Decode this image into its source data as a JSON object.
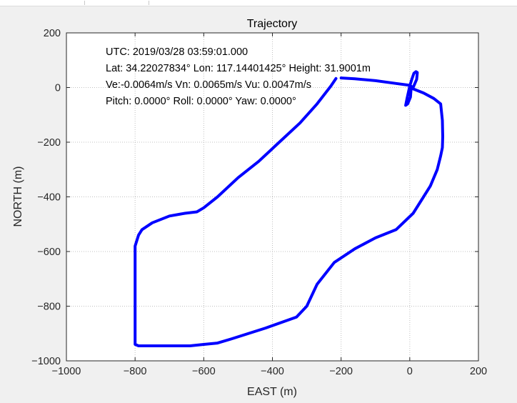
{
  "chart_data": {
    "type": "line",
    "title": "Trajectory",
    "xlabel": "EAST (m)",
    "ylabel": "NORTH (m)",
    "xlim": [
      -1000,
      200
    ],
    "ylim": [
      -1000,
      200
    ],
    "xticks": [
      -1000,
      -800,
      -600,
      -400,
      -200,
      0,
      200
    ],
    "yticks": [
      -1000,
      -800,
      -600,
      -400,
      -200,
      0,
      200
    ],
    "xtick_labels": [
      "−1000",
      "−800",
      "−600",
      "−400",
      "−200",
      "0",
      "200"
    ],
    "ytick_labels": [
      "−1000",
      "−800",
      "−600",
      "−400",
      "−200",
      "0",
      "200"
    ],
    "grid": true,
    "line_color": "#0000ff",
    "annotations": [
      "UTC: 2019/03/28  03:59:01.000",
      "Lat: 34.22027834°  Lon: 117.14401425°  Height: 31.9001m",
      "Ve:-0.0064m/s   Vn: 0.0065m/s   Vu: 0.0047m/s",
      "Pitch: 0.0000°  Roll: 0.0000°  Yaw: 0.0000°"
    ],
    "series": [
      {
        "x": [
          -200,
          -160,
          -100,
          -40,
          0,
          10,
          20,
          22,
          18,
          12,
          6,
          0,
          -8,
          -12,
          -6,
          2,
          4,
          10,
          40,
          70,
          90,
          95,
          96,
          95,
          90,
          80,
          60,
          40,
          10,
          -40,
          -100,
          -160,
          -220,
          -270,
          -300,
          -330,
          -420,
          -520,
          -560,
          -600,
          -640,
          -680,
          -740,
          -790,
          -800,
          -800,
          -800,
          -800,
          -800,
          -800,
          -790,
          -780,
          -750,
          -700,
          -655,
          -620,
          -600,
          -560,
          -500,
          -440,
          -380,
          -320,
          -270,
          -230,
          -215
        ],
        "y": [
          35,
          32,
          25,
          15,
          8,
          0,
          30,
          55,
          58,
          52,
          30,
          5,
          -40,
          -65,
          -60,
          -35,
          0,
          -5,
          -20,
          -40,
          -60,
          -120,
          -180,
          -220,
          -250,
          -300,
          -360,
          -400,
          -460,
          -520,
          -550,
          -590,
          -640,
          -720,
          -800,
          -840,
          -880,
          -920,
          -935,
          -940,
          -945,
          -945,
          -945,
          -945,
          -940,
          -900,
          -800,
          -700,
          -600,
          -580,
          -540,
          -520,
          -495,
          -470,
          -460,
          -455,
          -440,
          -400,
          -330,
          -270,
          -200,
          -130,
          -60,
          5,
          33
        ]
      }
    ]
  }
}
